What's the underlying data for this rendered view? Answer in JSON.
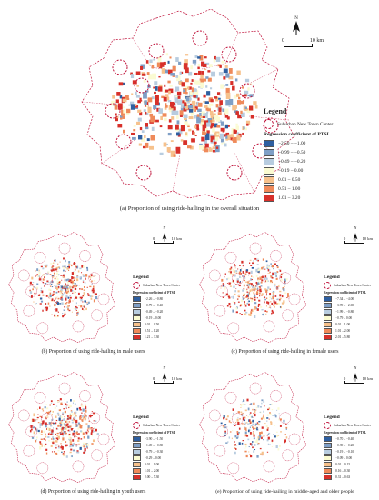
{
  "colors": {
    "boundary": "#c0143c",
    "classes": [
      "#2f5fa0",
      "#7f9fc6",
      "#b8ccdf",
      "#fbfbd2",
      "#f6c18c",
      "#ef8a5a",
      "#d7302a"
    ]
  },
  "panels": [
    {
      "id": "a",
      "caption": "(a) Proportion of using ride-hailing in the overall situation",
      "north": "N",
      "scale_start": "0",
      "scale_end": "10 km",
      "legend_title": "Legend",
      "center_label": "Suburban New Town Center",
      "coef_title": "Regression coefficient of PTSL",
      "classes": [
        "−2.50 – −1.00",
        "−0.99 – −0.50",
        "−0.49 – −0.20",
        "−0.19 – 0.00",
        "0.01 – 0.50",
        "0.51 – 1.00",
        "1.01 – 3.20"
      ]
    },
    {
      "id": "b",
      "caption": "(b) Proportion of using ride-hailing in male users",
      "north": "N",
      "scale_start": "0",
      "scale_end": "10 km",
      "legend_title": "Legend",
      "center_label": "Suburban New Town Center",
      "coef_title": "Regression coefficient of PTSL",
      "classes": [
        "−2.26 – −0.80",
        "−0.79 – −0.40",
        "−0.49 – −0.20",
        "−0.19 – 0.00",
        "0.01 – 0.50",
        "0.51 – 1.20",
        "1.21 – 3.30"
      ]
    },
    {
      "id": "c",
      "caption": "(c) Proportion of using ride-hailing in female users",
      "north": "N",
      "scale_start": "0",
      "scale_end": "10 km",
      "legend_title": "Legend",
      "center_label": "Suburban New Town Center",
      "coef_title": "Regression coefficient of PTSL",
      "classes": [
        "−7.34 – −4.00",
        "−3.99 – −2.00",
        "−1.99 – −0.80",
        "−0.79 – 0.00",
        "0.01 – 1.00",
        "1.01 – 2.00",
        "2.01 – 5.80"
      ]
    },
    {
      "id": "d",
      "caption": "(d) Proportion of using ride-hailing in youth users",
      "north": "N",
      "scale_start": "0",
      "scale_end": "10 km",
      "legend_title": "Legend",
      "center_label": "Suburban New Town Center",
      "coef_title": "Regression coefficient of PTSL",
      "classes": [
        "−3.90 – −1.50",
        "−1.49 – −0.80",
        "−0.79 – −0.30",
        "−0.29 – 0.00",
        "0.01 – 1.00",
        "1.01 – 2.00",
        "2.00 – 5.30"
      ]
    },
    {
      "id": "e",
      "caption": "(e) Proportion of using ride-hailing in middle-aged and older people",
      "north": "N",
      "scale_start": "0",
      "scale_end": "10 km",
      "legend_title": "Legend",
      "center_label": "Suburban New Town Center",
      "coef_title": "Regression coefficient of PTSL",
      "classes": [
        "−0.70 – −0.40",
        "−0.39 – −0.20",
        "−0.19 – −0.10",
        "−0.09 – 0.00",
        "0.01 – 0.15",
        "0.16 – 0.30",
        "0.31 – 0.63"
      ]
    }
  ]
}
